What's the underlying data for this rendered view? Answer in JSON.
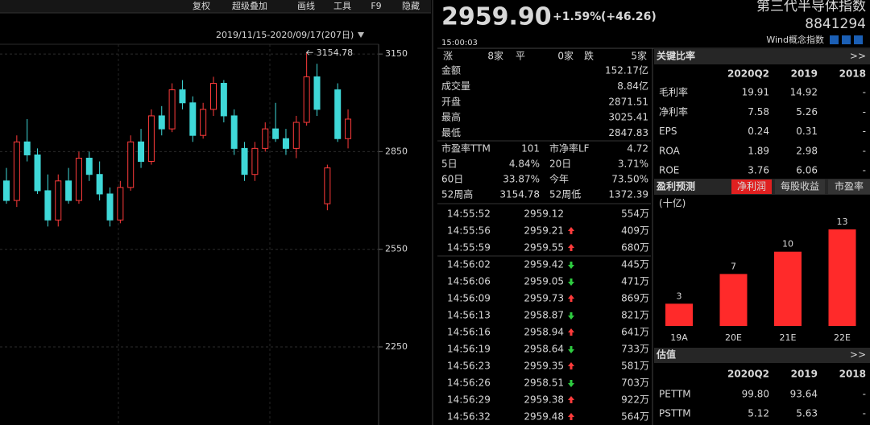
{
  "toolbar": [
    "复权",
    "超级叠加",
    "画线",
    "工具",
    "F9",
    "隐藏"
  ],
  "chart_data": [
    {
      "type": "candlestick",
      "range_label": "2019/11/15-2020/09/17(207日)",
      "ylim": [
        2010,
        3180
      ],
      "yticks": [
        2250,
        2550,
        2850,
        3150
      ],
      "grid": true,
      "up_color": "#ff3b3b",
      "down_color": "#3fd8d8",
      "open": [
        2760,
        2700,
        2880,
        2840,
        2730,
        2640,
        2760,
        2700,
        2830,
        2780,
        2720,
        2640,
        2740,
        2880,
        2820,
        2960,
        2920,
        3040,
        3000,
        2900,
        2980,
        3060,
        2960,
        2860,
        2780,
        2860,
        2920,
        2890,
        2860,
        2940,
        3080,
        2690,
        3040,
        2890
      ],
      "high": [
        2800,
        2900,
        2950,
        2860,
        2780,
        2780,
        2800,
        2850,
        2850,
        2820,
        2740,
        2760,
        2900,
        2920,
        2980,
        2990,
        3060,
        3070,
        3020,
        3000,
        3080,
        3070,
        2980,
        2880,
        2880,
        2940,
        3000,
        2920,
        2960,
        3154.78,
        3120,
        2810,
        3060,
        2980
      ],
      "low": [
        2690,
        2680,
        2820,
        2720,
        2620,
        2620,
        2690,
        2690,
        2760,
        2700,
        2620,
        2630,
        2730,
        2800,
        2810,
        2900,
        2910,
        2980,
        2880,
        2890,
        2960,
        2940,
        2840,
        2760,
        2760,
        2850,
        2880,
        2840,
        2830,
        2930,
        2960,
        2670,
        2880,
        2860
      ],
      "close": [
        2700,
        2880,
        2840,
        2730,
        2640,
        2760,
        2700,
        2830,
        2780,
        2720,
        2640,
        2740,
        2880,
        2820,
        2960,
        2920,
        3040,
        3000,
        2900,
        2980,
        3060,
        2960,
        2860,
        2780,
        2860,
        2920,
        2890,
        2860,
        2940,
        3080,
        2980,
        2800,
        2890,
        2950
      ],
      "max_annotation": "3154.78",
      "lines": [
        {
          "color": "#f0f0f0",
          "values": [
            2800,
            2790,
            2780,
            2790,
            2770,
            2750,
            2740,
            2740,
            2750,
            2760,
            2740,
            2740,
            2760,
            2780,
            2820,
            2860,
            2900,
            2940,
            2960,
            2960,
            2980,
            2990,
            2960,
            2920,
            2880,
            2860,
            2860,
            2870,
            2880,
            2920,
            2940,
            2890,
            2890,
            2900
          ]
        },
        {
          "color": "#f2e20c",
          "values": [
            2640,
            2660,
            2680,
            2700,
            2710,
            2720,
            2730,
            2740,
            2750,
            2760,
            2750,
            2750,
            2750,
            2760,
            2780,
            2800,
            2830,
            2860,
            2880,
            2900,
            2920,
            2940,
            2950,
            2950,
            2940,
            2920,
            2900,
            2890,
            2880,
            2880,
            2890,
            2890,
            2890,
            2900
          ]
        },
        {
          "color": "#e020e0",
          "values": [
            2300,
            2350,
            2400,
            2450,
            2500,
            2540,
            2580,
            2610,
            2640,
            2660,
            2680,
            2700,
            2720,
            2740,
            2760,
            2780,
            2800,
            2820,
            2840,
            2860,
            2870,
            2880,
            2890,
            2890,
            2880,
            2880,
            2880,
            2890,
            2900,
            2900,
            2900,
            2890,
            2880,
            2880
          ]
        },
        {
          "color": "#1fa81f",
          "values": [
            2110,
            2130,
            2150,
            2170,
            2190,
            2220,
            2250,
            2280,
            2310,
            2340,
            2370,
            2400,
            2430,
            2450,
            2470,
            2490,
            2510,
            2530,
            2550,
            2570,
            2590,
            2600,
            2620,
            2630,
            2640,
            2650,
            2660,
            2670,
            2690,
            2710,
            2730,
            2750,
            2760,
            2770
          ]
        },
        {
          "color": "#9ff0f0",
          "values": [
            2060,
            2070,
            2080,
            2090,
            2100,
            2110,
            2120,
            2130,
            2140,
            2150,
            2160,
            2170,
            2180,
            2190,
            2200,
            2210,
            2220,
            2230,
            2240,
            2250,
            2260,
            2270,
            2280,
            2290,
            2300,
            2310,
            2320,
            2330,
            2345,
            2360,
            2375,
            2390,
            2400,
            2410
          ]
        }
      ]
    },
    {
      "type": "bar",
      "title": "盈利预测",
      "tabs": [
        {
          "label": "净利润",
          "active": true
        },
        {
          "label": "每股收益",
          "active": false
        },
        {
          "label": "市盈率",
          "active": false
        }
      ],
      "unit_label": "(十亿)",
      "categories": [
        "19A",
        "20E",
        "21E",
        "22E"
      ],
      "values": [
        3,
        7,
        10,
        13
      ],
      "color": "#ff2a2a"
    }
  ],
  "quote": {
    "price": "2959.90",
    "change_pct": "+1.59%",
    "change": "(+46.26)",
    "time": "15:00:03",
    "name": "第三代半导体指数",
    "code": "8841294",
    "index_type": "Wind概念指数"
  },
  "breadth": [
    {
      "text": "涨",
      "color": "#d8d8d8"
    },
    {
      "text": "8家",
      "color": "#ff3b3b"
    },
    {
      "text": "平",
      "color": "#d8d8d8"
    },
    {
      "text": "0家",
      "color": "#d8d8d8"
    },
    {
      "text": "跌",
      "color": "#d8d8d8"
    },
    {
      "text": "5家",
      "color": "#2ecc40"
    }
  ],
  "stats": [
    {
      "label": "金额",
      "value": "152.17亿",
      "color": "#d8d8d8"
    },
    {
      "label": "成交量",
      "value": "8.84亿",
      "color": "#d8d8d8"
    },
    {
      "label": "开盘",
      "value": "2871.51",
      "color": "#2ecc40"
    },
    {
      "label": "最高",
      "value": "3025.41",
      "color": "#ff3b3b"
    },
    {
      "label": "最低",
      "value": "2847.83",
      "color": "#2ecc40"
    }
  ],
  "pairs": [
    [
      {
        "text": "市盈率TTM",
        "color": "#d8d8d8"
      },
      {
        "text": "101",
        "color": "#d8d8d8"
      },
      {
        "text": "市净率LF",
        "color": "#d8d8d8"
      },
      {
        "text": "4.72",
        "color": "#d8d8d8"
      }
    ],
    [
      {
        "text": "5日",
        "color": "#d8d8d8"
      },
      {
        "text": "4.84%",
        "color": "#ff3b3b"
      },
      {
        "text": "20日",
        "color": "#d8d8d8"
      },
      {
        "text": "3.71%",
        "color": "#ff3b3b"
      }
    ],
    [
      {
        "text": "60日",
        "color": "#d8d8d8"
      },
      {
        "text": "33.87%",
        "color": "#ff3b3b"
      },
      {
        "text": "今年",
        "color": "#d8d8d8"
      },
      {
        "text": "73.50%",
        "color": "#ff3b3b"
      }
    ],
    [
      {
        "text": "52周高",
        "color": "#d8d8d8"
      },
      {
        "text": "3154.78",
        "color": "#d8d8d8"
      },
      {
        "text": "52周低",
        "color": "#d8d8d8"
      },
      {
        "text": "1372.39",
        "color": "#d8d8d8"
      }
    ]
  ],
  "trades": [
    {
      "time": "14:55:52",
      "price": "2959.12",
      "dir": null,
      "volume": "554万"
    },
    {
      "time": "14:55:56",
      "price": "2959.21",
      "dir": "up",
      "volume": "409万"
    },
    {
      "time": "14:55:59",
      "price": "2959.55",
      "dir": "up",
      "volume": "680万"
    },
    {
      "time": "14:56:02",
      "price": "2959.42",
      "dir": "down",
      "volume": "445万"
    },
    {
      "time": "14:56:06",
      "price": "2959.05",
      "dir": "down",
      "volume": "471万"
    },
    {
      "time": "14:56:09",
      "price": "2959.73",
      "dir": "up",
      "volume": "869万"
    },
    {
      "time": "14:56:13",
      "price": "2958.87",
      "dir": "down",
      "volume": "821万"
    },
    {
      "time": "14:56:16",
      "price": "2958.94",
      "dir": "up",
      "volume": "641万"
    },
    {
      "time": "14:56:19",
      "price": "2958.64",
      "dir": "down",
      "volume": "733万"
    },
    {
      "time": "14:56:23",
      "price": "2959.35",
      "dir": "up",
      "volume": "581万"
    },
    {
      "time": "14:56:26",
      "price": "2958.51",
      "dir": "down",
      "volume": "703万"
    },
    {
      "time": "14:56:29",
      "price": "2959.38",
      "dir": "up",
      "volume": "922万"
    },
    {
      "time": "14:56:32",
      "price": "2959.48",
      "dir": "up",
      "volume": "564万"
    }
  ],
  "ratios": {
    "title": "关键比率",
    "more": ">>",
    "columns": [
      "2020Q2",
      "2019",
      "2018"
    ],
    "rows": [
      [
        "毛利率",
        "19.91",
        "14.92",
        "-"
      ],
      [
        "净利率",
        "7.58",
        "5.26",
        "-"
      ],
      [
        "EPS",
        "0.24",
        "0.31",
        "-"
      ],
      [
        "ROA",
        "1.89",
        "2.98",
        "-"
      ],
      [
        "ROE",
        "3.76",
        "6.06",
        "-"
      ]
    ]
  },
  "valuation": {
    "title": "估值",
    "more": ">>",
    "columns": [
      "2020Q2",
      "2019",
      "2018"
    ],
    "rows": [
      [
        "PETTM",
        "99.80",
        "93.64",
        "-"
      ],
      [
        "PSTTM",
        "5.12",
        "5.63",
        "-"
      ]
    ]
  }
}
